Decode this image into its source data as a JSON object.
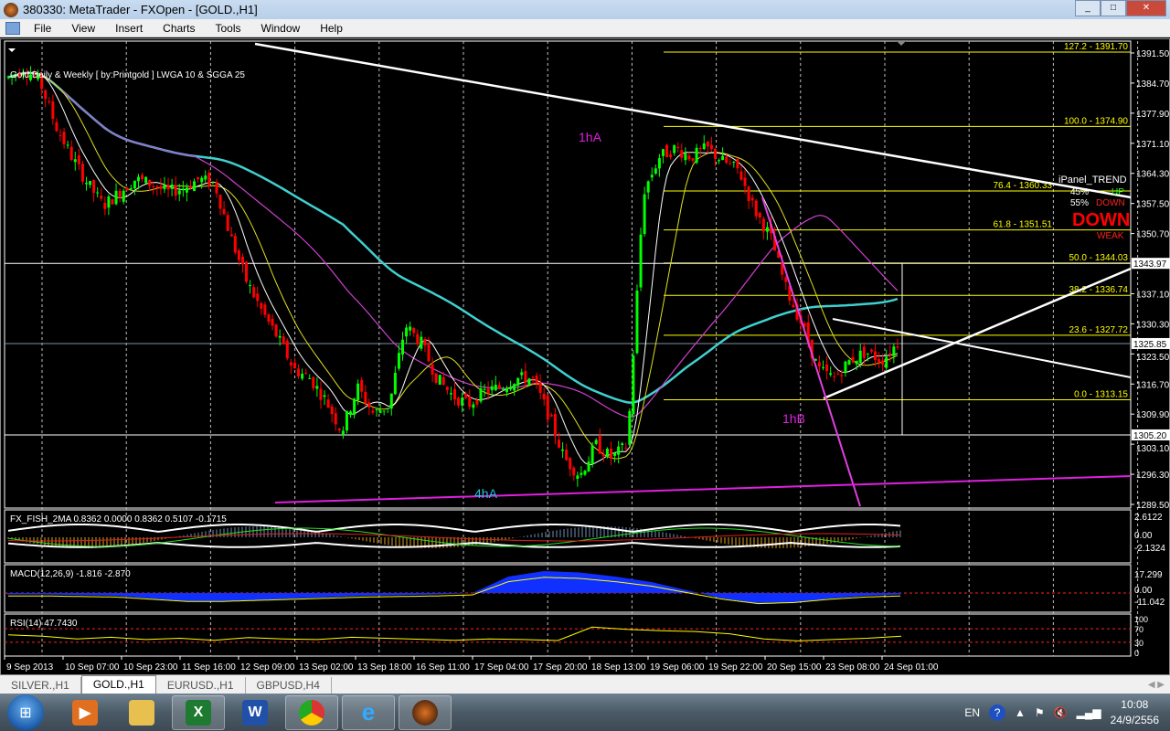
{
  "window": {
    "title": "380330: MetaTrader - FXOpen - [GOLD.,H1]"
  },
  "menu": [
    "File",
    "View",
    "Insert",
    "Charts",
    "Tools",
    "Window",
    "Help"
  ],
  "chart": {
    "indicator_caption": "Gold Daily & Weekly [ by:Printgold ]  LWGA 10  &  SGGA 25",
    "price_ticks": [
      "1391.50",
      "1384.70",
      "1377.90",
      "1371.10",
      "1364.30",
      "1357.50",
      "1350.70",
      "1337.10",
      "1330.30",
      "1323.50",
      "1316.70",
      "1309.90",
      "1303.10",
      "1296.30",
      "1289.50"
    ],
    "price_tick_values": [
      1391.5,
      1384.7,
      1377.9,
      1371.1,
      1364.3,
      1357.5,
      1350.7,
      1337.1,
      1330.3,
      1323.5,
      1316.7,
      1309.9,
      1303.1,
      1296.3,
      1289.5
    ],
    "price_range": [
      1289.5,
      1391.5
    ],
    "boxed_prices": [
      {
        "label": "1343.97",
        "value": 1343.97
      },
      {
        "label": "1325.85",
        "value": 1325.85
      },
      {
        "label": "1305.20",
        "value": 1305.2
      }
    ],
    "fib_levels": [
      {
        "label": "127.2 - 1391.70",
        "value": 1391.7
      },
      {
        "label": "100.0 - 1374.90",
        "value": 1374.9
      },
      {
        "label": "76.4 - 1360.33",
        "value": 1360.33
      },
      {
        "label": "61.8 - 1351.51",
        "value": 1351.51
      },
      {
        "label": "50.0 - 1344.03",
        "value": 1344.03
      },
      {
        "label": "38.2 - 1336.74",
        "value": 1336.74
      },
      {
        "label": "23.6 - 1327.72",
        "value": 1327.72
      },
      {
        "label": "0.0 - 1313.15",
        "value": 1313.15
      }
    ],
    "annotations": [
      {
        "text": "1hA",
        "color": "#e020e0"
      },
      {
        "text": "1hB",
        "color": "#e020e0"
      },
      {
        "text": "4hA",
        "color": "#20c0e0"
      }
    ],
    "ipanel": {
      "title": "iPanel_TREND",
      "up_pct": "45%",
      "up_label": "UP",
      "down_pct": "55%",
      "down_label": "DOWN",
      "big": "DOWN",
      "strength": "WEAK"
    },
    "time_labels": [
      "9 Sep 2013",
      "10 Sep 07:00",
      "10 Sep 23:00",
      "11 Sep 16:00",
      "12 Sep 09:00",
      "13 Sep 02:00",
      "13 Sep 18:00",
      "16 Sep 11:00",
      "17 Sep 04:00",
      "17 Sep 20:00",
      "18 Sep 13:00",
      "19 Sep 06:00",
      "19 Sep 22:00",
      "20 Sep 15:00",
      "23 Sep 08:00",
      "24 Sep 01:00"
    ],
    "close_samples": [
      1386,
      1388,
      1385,
      1375,
      1368,
      1362,
      1357,
      1360,
      1363,
      1362,
      1360,
      1361,
      1363,
      1362,
      1350,
      1340,
      1333,
      1327,
      1320,
      1318,
      1313,
      1306,
      1316,
      1310,
      1312,
      1330,
      1326,
      1318,
      1314,
      1312,
      1315,
      1316,
      1318,
      1318,
      1310,
      1300,
      1296,
      1303,
      1300,
      1303,
      1360,
      1368,
      1370,
      1368,
      1370,
      1367,
      1365,
      1356,
      1350,
      1338,
      1330,
      1320,
      1318,
      1322,
      1324,
      1322,
      1326
    ],
    "colors": {
      "bull": "#00ff00",
      "bear": "#ff0000",
      "fib": "#ffff00",
      "grid": "#c0c0c0"
    },
    "sub_panels": [
      {
        "caption": "FX_FISH_2MA 0.8362 0.0000 0.8362 0.5107 -0.1715",
        "ticks": [
          "2.6122",
          "0.00",
          "-2.1324"
        ]
      },
      {
        "caption": "MACD(12,26,9) -1.816 -2.870",
        "ticks": [
          "17.299",
          "0.00",
          "-11.042"
        ],
        "histogram_samples": [
          -1,
          -1,
          -1.5,
          -2,
          -4,
          -6,
          -6,
          -5,
          -4,
          -3,
          -2,
          -1.5,
          -1,
          0,
          12,
          16,
          15,
          12,
          8,
          2,
          -4,
          -8,
          -7,
          -4,
          -2,
          -1
        ]
      },
      {
        "caption": "RSI(14) 47.7430",
        "ticks": [
          "100",
          "70",
          "30",
          "0"
        ],
        "rsi_samples": [
          52,
          48,
          40,
          45,
          38,
          42,
          36,
          44,
          40,
          38,
          45,
          42,
          39,
          36,
          40,
          38,
          35,
          75,
          68,
          64,
          62,
          55,
          40,
          34,
          38,
          42,
          48
        ]
      }
    ]
  },
  "tabs": [
    "SILVER.,H1",
    "GOLD.,H1",
    "EURUSD.,H1",
    "GBPUSD,H4"
  ],
  "active_tab": "GOLD.,H1",
  "taskbar": {
    "apps": [
      "media-player",
      "explorer",
      "excel",
      "word",
      "chrome",
      "internet-explorer",
      "metatrader"
    ],
    "lang": "EN",
    "time": "10:08",
    "date": "24/9/2556"
  }
}
